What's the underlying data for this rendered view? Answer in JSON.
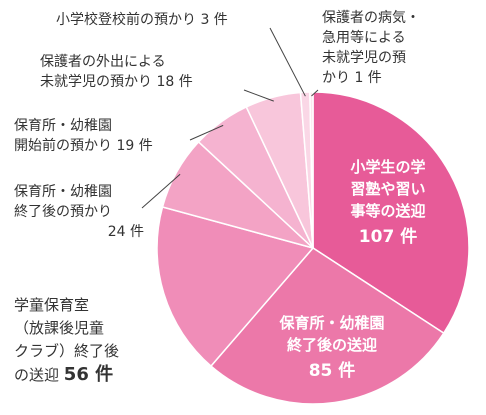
{
  "chart_data": {
    "type": "pie",
    "slices": [
      {
        "name": "小学生の学習塾や習い事等の送迎",
        "value": 107,
        "color": "#e75b98",
        "label_lines": [
          "小学生の学",
          "習塾や習い",
          "事等の送迎"
        ],
        "value_label": "107 件"
      },
      {
        "name": "保育所・幼稚園終了後の送迎",
        "value": 85,
        "color": "#ec78a9",
        "label_lines": [
          "保育所・幼稚園",
          "終了後の送迎"
        ],
        "value_label": "85 件"
      },
      {
        "name": "学童保育室（放課後児童クラブ）終了後の送迎",
        "value": 56,
        "color": "#f08db8",
        "label_lines": [
          "学童保育室",
          "（放課後児童",
          "クラブ）終了後",
          "の送迎"
        ],
        "value_label": "56 件"
      },
      {
        "name": "保育所・幼稚園終了後の預かり",
        "value": 24,
        "color": "#f3a3c5",
        "label_lines": [
          "保育所・幼稚園",
          "終了後の預かり",
          "24 件"
        ]
      },
      {
        "name": "保育所・幼稚園開始前の預かり",
        "value": 19,
        "color": "#f5b3d0",
        "label_lines": [
          "保育所・幼稚園",
          "開始前の預かり 19 件"
        ]
      },
      {
        "name": "保護者の外出による未就学児の預かり",
        "value": 18,
        "color": "#f8c6db",
        "label_lines": [
          "保護者の外出による",
          "未就学児の預かり 18 件"
        ]
      },
      {
        "name": "小学校登校前の預かり",
        "value": 3,
        "color": "#fad7e6",
        "label_lines": [
          "小学校登校前の預かり 3 件"
        ]
      },
      {
        "name": "保護者の病気・急用等による未就学児の預かり",
        "value": 1,
        "color": "#fce6ef",
        "label_lines": [
          "保護者の病気・",
          "急用等による",
          "未就学児の預",
          "かり 1 件"
        ]
      }
    ]
  }
}
